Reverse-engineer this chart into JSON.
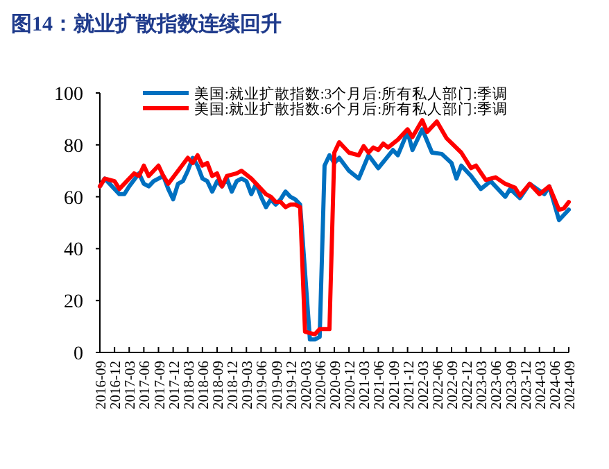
{
  "chart_data": {
    "type": "line",
    "title": "图14：就业扩散指数连续回升",
    "xlim": [
      "2016-09",
      "2024-09"
    ],
    "xticks": [
      "2016-09",
      "2016-12",
      "2017-03",
      "2017-06",
      "2017-09",
      "2017-12",
      "2018-03",
      "2018-06",
      "2018-09",
      "2018-12",
      "2019-03",
      "2019-06",
      "2019-09",
      "2019-12",
      "2020-03",
      "2020-06",
      "2020-09",
      "2020-12",
      "2021-03",
      "2021-06",
      "2021-09",
      "2021-12",
      "2022-03",
      "2022-06",
      "2022-09",
      "2022-12",
      "2023-03",
      "2023-06",
      "2023-09",
      "2023-12",
      "2024-03",
      "2024-06",
      "2024-09"
    ],
    "ylim": [
      0,
      100
    ],
    "yticks": [
      0,
      20,
      40,
      60,
      80,
      100
    ],
    "grid": false,
    "legend": "top",
    "line_style": "solid",
    "marker": "none",
    "series": [
      {
        "name": "美国:就业扩散指数:3个月后:所有私人部门:季调",
        "color": "#0070c0",
        "x": [
          "2016-09",
          "2016-10",
          "2016-12",
          "2017-01",
          "2017-02",
          "2017-03",
          "2017-05",
          "2017-06",
          "2017-07",
          "2017-08",
          "2017-09",
          "2017-10",
          "2017-11",
          "2017-12",
          "2018-01",
          "2018-02",
          "2018-03",
          "2018-04",
          "2018-05",
          "2018-06",
          "2018-07",
          "2018-08",
          "2018-09",
          "2018-10",
          "2018-11",
          "2018-12",
          "2019-01",
          "2019-02",
          "2019-03",
          "2019-04",
          "2019-05",
          "2019-06",
          "2019-07",
          "2019-08",
          "2019-09",
          "2019-10",
          "2019-11",
          "2019-12",
          "2020-01",
          "2020-02",
          "2020-04",
          "2020-05",
          "2020-06",
          "2020-07",
          "2020-08",
          "2020-09",
          "2020-10",
          "2020-12",
          "2021-02",
          "2021-04",
          "2021-06",
          "2021-09",
          "2021-10",
          "2021-12",
          "2022-01",
          "2022-03",
          "2022-05",
          "2022-07",
          "2022-09",
          "2022-10",
          "2022-11",
          "2023-01",
          "2023-03",
          "2023-05",
          "2023-08",
          "2023-09",
          "2023-11",
          "2024-01",
          "2024-04",
          "2024-05",
          "2024-07",
          "2024-09"
        ],
        "values": [
          64,
          67,
          63,
          61,
          61,
          64,
          69,
          65,
          64,
          66,
          67,
          68,
          63,
          59,
          65,
          66,
          70,
          75,
          72,
          67,
          66,
          62,
          66,
          64,
          67,
          62,
          66,
          67,
          66,
          61,
          65,
          60,
          56,
          59,
          57,
          59,
          62,
          60,
          59,
          57,
          5,
          5,
          6,
          72,
          76,
          73,
          75,
          70,
          67,
          76,
          71,
          78,
          76,
          85,
          78,
          86,
          77,
          76.5,
          73,
          67,
          72,
          68,
          63,
          66,
          60,
          63,
          59.5,
          65,
          61,
          64,
          51,
          55
        ]
      },
      {
        "name": "美国:就业扩散指数:6个月后:所有私人部门:季调",
        "color": "#ff0000",
        "x": [
          "2016-09",
          "2016-10",
          "2016-12",
          "2017-01",
          "2017-02",
          "2017-04",
          "2017-05",
          "2017-06",
          "2017-07",
          "2017-08",
          "2017-09",
          "2017-10",
          "2017-11",
          "2018-01",
          "2018-03",
          "2018-04",
          "2018-05",
          "2018-06",
          "2018-07",
          "2018-08",
          "2018-09",
          "2018-10",
          "2018-11",
          "2019-01",
          "2019-02",
          "2019-04",
          "2019-05",
          "2019-07",
          "2019-08",
          "2019-09",
          "2019-10",
          "2019-11",
          "2019-12",
          "2020-01",
          "2020-02",
          "2020-03",
          "2020-05",
          "2020-06",
          "2020-08",
          "2020-09",
          "2020-10",
          "2020-12",
          "2021-02",
          "2021-03",
          "2021-04",
          "2021-05",
          "2021-06",
          "2021-07",
          "2021-08",
          "2021-10",
          "2021-12",
          "2022-01",
          "2022-03",
          "2022-04",
          "2022-06",
          "2022-08",
          "2022-11",
          "2023-01",
          "2023-02",
          "2023-04",
          "2023-06",
          "2023-08",
          "2023-10",
          "2023-11",
          "2024-01",
          "2024-03",
          "2024-05",
          "2024-07",
          "2024-08",
          "2024-09"
        ],
        "values": [
          64,
          67,
          66,
          63,
          65,
          69,
          68,
          72,
          68,
          70,
          72,
          68,
          65,
          70,
          75,
          73,
          76,
          72,
          73,
          68,
          69,
          64,
          68,
          69,
          70,
          67,
          65,
          61,
          60,
          58,
          58,
          56,
          57,
          57,
          56,
          8,
          7,
          9,
          9,
          77,
          81,
          77,
          76,
          79.5,
          77,
          79,
          78,
          80.5,
          79,
          82,
          86,
          83,
          89.5,
          85,
          89,
          82.5,
          77,
          71,
          72,
          66.5,
          67.5,
          65,
          63.5,
          60.5,
          65,
          61,
          64,
          55,
          55.5,
          58
        ]
      }
    ]
  }
}
